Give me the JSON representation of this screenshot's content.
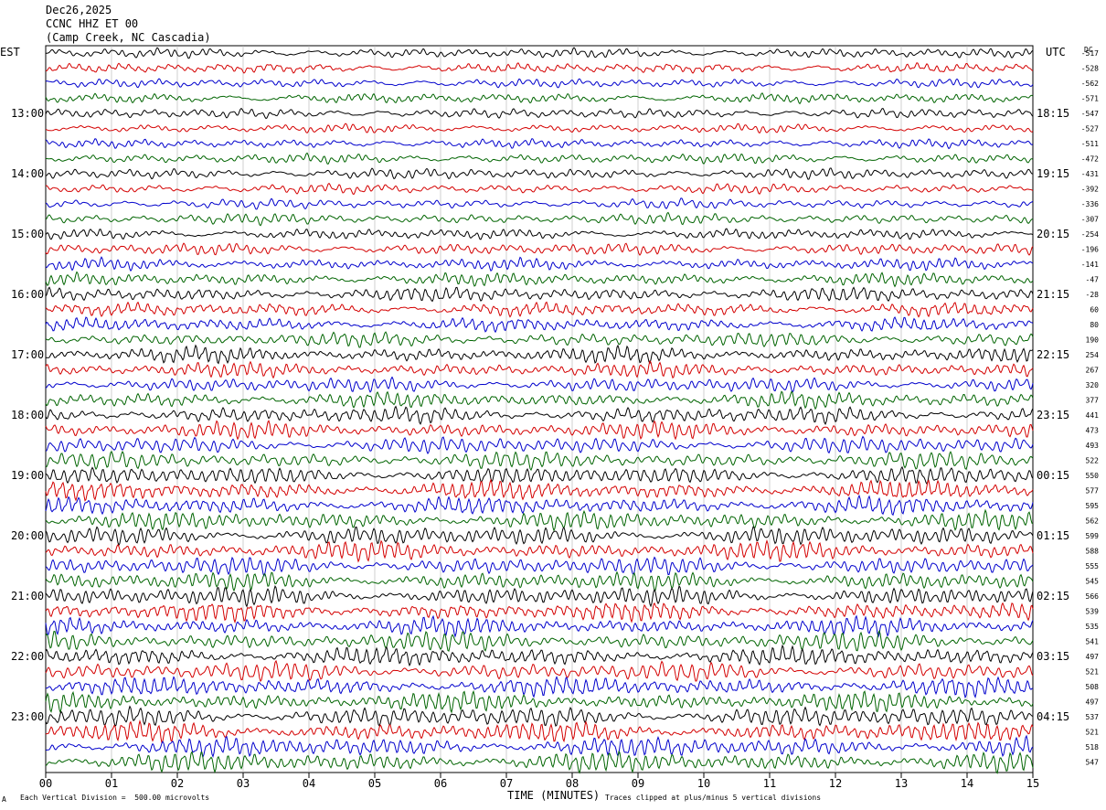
{
  "header": {
    "date": "Dec26,2025",
    "station": "CCNC HHZ ET 00",
    "location": "(Camp Creek, NC Cascadia)"
  },
  "axes": {
    "left_zone": "EST",
    "right_zone": "UTC",
    "dc_label": "DC",
    "xlabel": "TIME (MINUTES)",
    "footer_left": "Each Vertical Division =  500.00 microvolts",
    "footer_right": "Traces clipped at plus/minus 5 vertical divisions",
    "corner_mark": "A"
  },
  "chart_data": {
    "type": "line",
    "title": "CCNC HHZ ET 00",
    "xlabel": "TIME (MINUTES)",
    "x_ticks": [
      "00",
      "01",
      "02",
      "03",
      "04",
      "05",
      "06",
      "07",
      "08",
      "09",
      "10",
      "11",
      "12",
      "13",
      "14",
      "15"
    ],
    "xlim": [
      0,
      15
    ],
    "trace_colors": [
      "#000000",
      "#d40000",
      "#0000cc",
      "#006400"
    ],
    "trace_count": 48,
    "left_hour_labels": [
      "13:00",
      "14:00",
      "15:00",
      "16:00",
      "17:00",
      "18:00",
      "19:00",
      "20:00",
      "21:00",
      "22:00",
      "23:00"
    ],
    "right_hour_labels": [
      "18:15",
      "19:15",
      "20:15",
      "21:15",
      "22:15",
      "23:15",
      "00:15",
      "01:15",
      "02:15",
      "03:15",
      "04:15"
    ],
    "dc_offsets": [
      "-517",
      "-528",
      "-562",
      "-571",
      "-547",
      "-527",
      "-511",
      "-472",
      "-431",
      "-392",
      "-336",
      "-307",
      "-254",
      "-196",
      "-141",
      "-47",
      "-28",
      "60",
      "80",
      "190",
      "254",
      "267",
      "320",
      "377",
      "441",
      "473",
      "493",
      "522",
      "550",
      "577",
      "595",
      "562",
      "599",
      "588",
      "555",
      "545",
      "566",
      "539",
      "535",
      "541",
      "497",
      "521",
      "508",
      "497",
      "537",
      "521",
      "518",
      "547"
    ],
    "amplitude_level": [
      0.35,
      0.35,
      0.3,
      0.35,
      0.35,
      0.3,
      0.3,
      0.35,
      0.4,
      0.35,
      0.35,
      0.4,
      0.4,
      0.45,
      0.45,
      0.5,
      0.6,
      0.55,
      0.55,
      0.6,
      0.65,
      0.6,
      0.6,
      0.65,
      0.7,
      0.7,
      0.7,
      0.7,
      0.8,
      0.8,
      0.75,
      0.75,
      0.8,
      0.8,
      0.75,
      0.75,
      0.8,
      0.8,
      0.75,
      0.8,
      0.8,
      0.8,
      0.8,
      0.8,
      0.85,
      0.85,
      0.85,
      0.85
    ]
  }
}
